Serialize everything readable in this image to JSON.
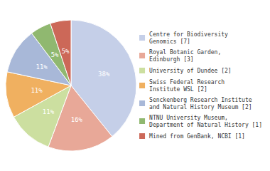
{
  "chart_data": {
    "type": "pie",
    "categories": [
      "Centre for Biodiversity\nGenomics [7]",
      "Royal Botanic Garden,\nEdinburgh [3]",
      "University of Dundee [2]",
      "Swiss Federal Research\nInstitute WSL [2]",
      "Senckenberg Research Institute\nand Natural History Museum [2]",
      "NTNU University Museum,\nDepartment of Natural History [1]",
      "Mined from GenBank, NCBI [1]"
    ],
    "values": [
      38,
      16,
      11,
      11,
      11,
      5,
      5
    ],
    "value_labels": [
      "38%",
      "16%",
      "11%",
      "11%",
      "11%",
      "5%",
      "5%"
    ],
    "colors": [
      "#c5cfe8",
      "#e8a898",
      "#ccdfa0",
      "#f0b060",
      "#a8b8d8",
      "#90b870",
      "#cc6858"
    ],
    "data_labels": true,
    "legend": "right"
  }
}
